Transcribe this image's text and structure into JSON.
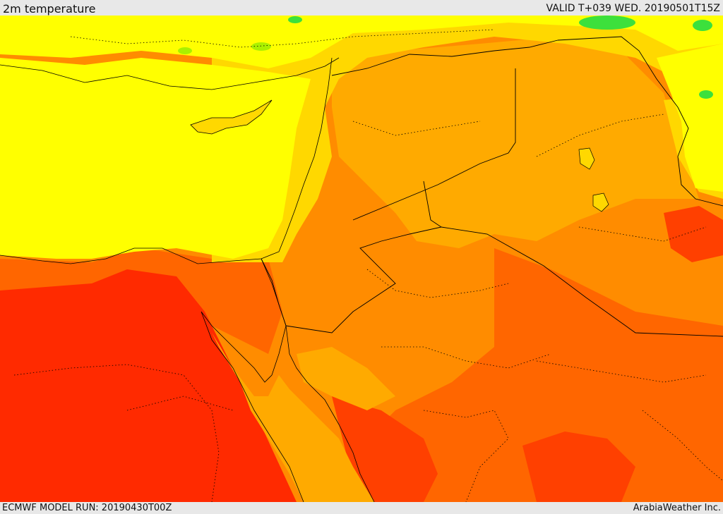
{
  "header": {
    "title": "2m temperature",
    "valid": "VALID T+039 WED. 20190501T15Z"
  },
  "footer": {
    "model_run": "ECMWF MODEL RUN: 20190430T00Z",
    "credit": "ArabiaWeather Inc."
  },
  "map": {
    "field": "2m temperature",
    "colors": {
      "green": "#3ce03c",
      "yellow_green": "#aaf000",
      "yellow": "#ffff00",
      "gold": "#ffd800",
      "light_orange": "#ffaa00",
      "orange": "#ff8c00",
      "dark_orange": "#ff6600",
      "red_orange": "#ff4000",
      "red": "#ff2a00",
      "border": "#000000"
    }
  }
}
